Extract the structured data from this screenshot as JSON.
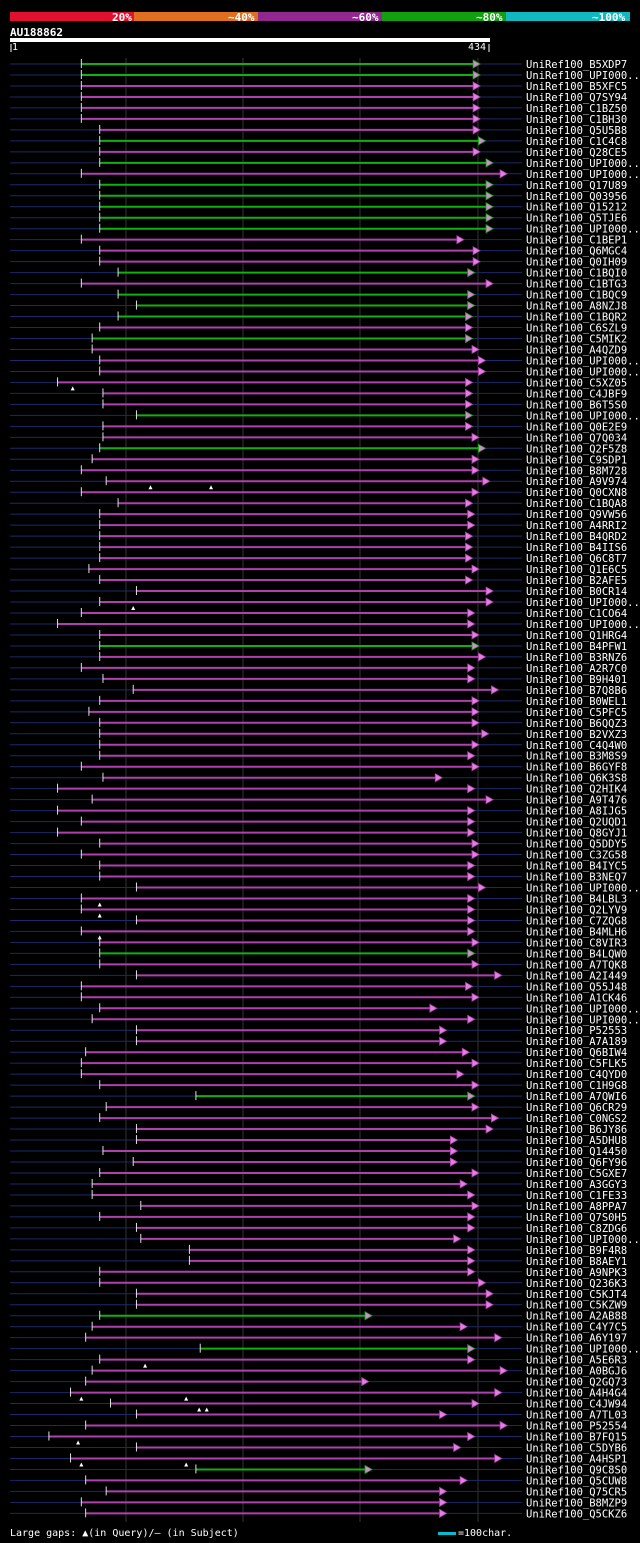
{
  "query": {
    "id": "AU188862",
    "start": "1",
    "end": "434"
  },
  "identity_scale": {
    "labels": [
      "20%",
      "~40%",
      "~60%",
      "~80%",
      "~100%"
    ],
    "colors": [
      "#e01030",
      "#e07020",
      "#902890",
      "#10a010",
      "#10b8c0"
    ]
  },
  "footer": {
    "gaps_text": "Large gaps: ▲(in Query)/— (in Subject)",
    "scale_text": "=100char."
  },
  "hits": [
    {
      "label": "UniRef100_B5XDP7",
      "start": 67,
      "end": 435,
      "color": "green",
      "qgap": []
    },
    {
      "label": "UniRef100_UPI000..",
      "start": 67,
      "end": 435,
      "color": "green",
      "qgap": []
    },
    {
      "label": "UniRef100_B5XFC5",
      "start": 67,
      "end": 435,
      "color": "purple",
      "qgap": []
    },
    {
      "label": "UniRef100_Q7SY94",
      "start": 67,
      "end": 435,
      "color": "purple",
      "qgap": []
    },
    {
      "label": "UniRef100_C1BZ50",
      "start": 67,
      "end": 435,
      "color": "purple",
      "qgap": []
    },
    {
      "label": "UniRef100_C1BH30",
      "start": 67,
      "end": 435,
      "color": "purple",
      "qgap": []
    },
    {
      "label": "UniRef100_Q5U5B8",
      "start": 84,
      "end": 435,
      "color": "purple",
      "qgap": []
    },
    {
      "label": "UniRef100_C1C4C8",
      "start": 84,
      "end": 440,
      "color": "green",
      "qgap": []
    },
    {
      "label": "UniRef100_Q28CE5",
      "start": 84,
      "end": 435,
      "color": "purple",
      "qgap": []
    },
    {
      "label": "UniRef100_UPI000..",
      "start": 84,
      "end": 447,
      "color": "green",
      "qgap": []
    },
    {
      "label": "UniRef100_UPI000..",
      "start": 67,
      "end": 460,
      "color": "purple",
      "qgap": []
    },
    {
      "label": "UniRef100_Q17U89",
      "start": 84,
      "end": 447,
      "color": "green",
      "qgap": []
    },
    {
      "label": "UniRef100_Q03956",
      "start": 84,
      "end": 447,
      "color": "green",
      "qgap": []
    },
    {
      "label": "UniRef100_Q15212",
      "start": 84,
      "end": 447,
      "color": "green",
      "qgap": []
    },
    {
      "label": "UniRef100_Q5TJE6",
      "start": 84,
      "end": 447,
      "color": "green",
      "qgap": []
    },
    {
      "label": "UniRef100_UPI000..",
      "start": 84,
      "end": 447,
      "color": "green",
      "qgap": []
    },
    {
      "label": "UniRef100_C1BEP1",
      "start": 67,
      "end": 420,
      "color": "purple",
      "qgap": []
    },
    {
      "label": "UniRef100_Q6MGC4",
      "start": 84,
      "end": 435,
      "color": "purple",
      "qgap": []
    },
    {
      "label": "UniRef100_Q0IH09",
      "start": 84,
      "end": 435,
      "color": "purple",
      "qgap": []
    },
    {
      "label": "UniRef100_C1BQI0",
      "start": 101,
      "end": 430,
      "color": "green",
      "qgap": []
    },
    {
      "label": "UniRef100_C1BTG3",
      "start": 67,
      "end": 447,
      "color": "purple",
      "qgap": []
    },
    {
      "label": "UniRef100_C1BQC9",
      "start": 101,
      "end": 430,
      "color": "green",
      "qgap": []
    },
    {
      "label": "UniRef100_A8NZJ8",
      "start": 118,
      "end": 430,
      "color": "green",
      "qgap": []
    },
    {
      "label": "UniRef100_C1BQR2",
      "start": 101,
      "end": 428,
      "color": "green",
      "qgap": []
    },
    {
      "label": "UniRef100_C6SZL9",
      "start": 84,
      "end": 428,
      "color": "purple",
      "qgap": []
    },
    {
      "label": "UniRef100_C5MIK2",
      "start": 77,
      "end": 428,
      "color": "green",
      "qgap": []
    },
    {
      "label": "UniRef100_A4QZD9",
      "start": 77,
      "end": 434,
      "color": "purple",
      "qgap": []
    },
    {
      "label": "UniRef100_UPI000..",
      "start": 84,
      "end": 440,
      "color": "purple",
      "qgap": []
    },
    {
      "label": "UniRef100_UPI000..",
      "start": 84,
      "end": 440,
      "color": "purple",
      "qgap": []
    },
    {
      "label": "UniRef100_C5XZ05",
      "start": 45,
      "end": 428,
      "color": "purple",
      "qgap": [
        59
      ]
    },
    {
      "label": "UniRef100_C4JBF9",
      "start": 87,
      "end": 428,
      "color": "purple",
      "qgap": []
    },
    {
      "label": "UniRef100_B6T5S0",
      "start": 87,
      "end": 428,
      "color": "purple",
      "qgap": []
    },
    {
      "label": "UniRef100_UPI000..",
      "start": 118,
      "end": 428,
      "color": "green",
      "qgap": []
    },
    {
      "label": "UniRef100_Q0E2E9",
      "start": 87,
      "end": 428,
      "color": "purple",
      "qgap": []
    },
    {
      "label": "UniRef100_Q7Q034",
      "start": 87,
      "end": 434,
      "color": "purple",
      "qgap": []
    },
    {
      "label": "UniRef100_Q2F5Z8",
      "start": 84,
      "end": 440,
      "color": "green",
      "qgap": []
    },
    {
      "label": "UniRef100_C9SDP1",
      "start": 77,
      "end": 434,
      "color": "purple",
      "qgap": []
    },
    {
      "label": "UniRef100_B8M728",
      "start": 67,
      "end": 434,
      "color": "purple",
      "qgap": []
    },
    {
      "label": "UniRef100_A9V974",
      "start": 90,
      "end": 444,
      "color": "purple",
      "qgap": [
        131,
        187
      ]
    },
    {
      "label": "UniRef100_Q0CXN8",
      "start": 67,
      "end": 434,
      "color": "purple",
      "qgap": []
    },
    {
      "label": "UniRef100_C1BQA8",
      "start": 101,
      "end": 428,
      "color": "purple",
      "qgap": []
    },
    {
      "label": "UniRef100_Q9VW56",
      "start": 84,
      "end": 430,
      "color": "purple",
      "qgap": []
    },
    {
      "label": "UniRef100_A4RRI2",
      "start": 84,
      "end": 430,
      "color": "purple",
      "qgap": []
    },
    {
      "label": "UniRef100_B4QRD2",
      "start": 84,
      "end": 428,
      "color": "purple",
      "qgap": []
    },
    {
      "label": "UniRef100_B4IIS6",
      "start": 84,
      "end": 428,
      "color": "purple",
      "qgap": []
    },
    {
      "label": "UniRef100_Q6C8T7",
      "start": 84,
      "end": 428,
      "color": "purple",
      "qgap": []
    },
    {
      "label": "UniRef100_Q1E6C5",
      "start": 74,
      "end": 434,
      "color": "purple",
      "qgap": []
    },
    {
      "label": "UniRef100_B2AFE5",
      "start": 84,
      "end": 428,
      "color": "purple",
      "qgap": []
    },
    {
      "label": "UniRef100_B0CR14",
      "start": 118,
      "end": 447,
      "color": "purple",
      "qgap": []
    },
    {
      "label": "UniRef100_UPI000..",
      "start": 84,
      "end": 447,
      "color": "purple",
      "qgap": [
        115
      ]
    },
    {
      "label": "UniRef100_C1CO64",
      "start": 67,
      "end": 430,
      "color": "purple",
      "qgap": []
    },
    {
      "label": "UniRef100_UPI000..",
      "start": 45,
      "end": 430,
      "color": "purple",
      "qgap": []
    },
    {
      "label": "UniRef100_Q1HRG4",
      "start": 84,
      "end": 434,
      "color": "purple",
      "qgap": []
    },
    {
      "label": "UniRef100_B4PFW1",
      "start": 84,
      "end": 434,
      "color": "green",
      "qgap": []
    },
    {
      "label": "UniRef100_B3RNZ6",
      "start": 84,
      "end": 440,
      "color": "purple",
      "qgap": []
    },
    {
      "label": "UniRef100_A2R7C0",
      "start": 67,
      "end": 430,
      "color": "purple",
      "qgap": []
    },
    {
      "label": "UniRef100_B9H401",
      "start": 87,
      "end": 430,
      "color": "purple",
      "qgap": []
    },
    {
      "label": "UniRef100_B7Q8B6",
      "start": 115,
      "end": 452,
      "color": "purple",
      "qgap": []
    },
    {
      "label": "UniRef100_B0WEL1",
      "start": 84,
      "end": 434,
      "color": "purple",
      "qgap": []
    },
    {
      "label": "UniRef100_C5PFC5",
      "start": 74,
      "end": 434,
      "color": "purple",
      "qgap": []
    },
    {
      "label": "UniRef100_B6QQZ3",
      "start": 84,
      "end": 434,
      "color": "purple",
      "qgap": []
    },
    {
      "label": "UniRef100_B2VXZ3",
      "start": 84,
      "end": 443,
      "color": "purple",
      "qgap": []
    },
    {
      "label": "UniRef100_C4Q4W0",
      "start": 84,
      "end": 434,
      "color": "purple",
      "qgap": []
    },
    {
      "label": "UniRef100_B3M8S9",
      "start": 84,
      "end": 430,
      "color": "purple",
      "qgap": []
    },
    {
      "label": "UniRef100_B6GYF8",
      "start": 67,
      "end": 434,
      "color": "purple",
      "qgap": []
    },
    {
      "label": "UniRef100_Q6K3S8",
      "start": 87,
      "end": 400,
      "color": "purple",
      "qgap": []
    },
    {
      "label": "UniRef100_Q2HIK4",
      "start": 45,
      "end": 430,
      "color": "purple",
      "qgap": []
    },
    {
      "label": "UniRef100_A9T476",
      "start": 77,
      "end": 447,
      "color": "purple",
      "qgap": []
    },
    {
      "label": "UniRef100_A8IJG5",
      "start": 45,
      "end": 430,
      "color": "purple",
      "qgap": []
    },
    {
      "label": "UniRef100_Q2UQD1",
      "start": 67,
      "end": 430,
      "color": "purple",
      "qgap": []
    },
    {
      "label": "UniRef100_Q8GYJ1",
      "start": 45,
      "end": 430,
      "color": "purple",
      "qgap": []
    },
    {
      "label": "UniRef100_Q5DDY5",
      "start": 84,
      "end": 434,
      "color": "purple",
      "qgap": []
    },
    {
      "label": "UniRef100_C3ZG58",
      "start": 67,
      "end": 434,
      "color": "purple",
      "qgap": []
    },
    {
      "label": "UniRef100_B4IYC5",
      "start": 84,
      "end": 430,
      "color": "purple",
      "qgap": []
    },
    {
      "label": "UniRef100_B3NEQ7",
      "start": 84,
      "end": 430,
      "color": "purple",
      "qgap": []
    },
    {
      "label": "UniRef100_UPI000..",
      "start": 118,
      "end": 440,
      "color": "purple",
      "qgap": []
    },
    {
      "label": "UniRef100_B4LBL3",
      "start": 67,
      "end": 430,
      "color": "purple",
      "qgap": [
        84
      ]
    },
    {
      "label": "UniRef100_Q2LYV9",
      "start": 67,
      "end": 430,
      "color": "purple",
      "qgap": [
        84
      ]
    },
    {
      "label": "UniRef100_C7ZQG8",
      "start": 118,
      "end": 430,
      "color": "purple",
      "qgap": []
    },
    {
      "label": "UniRef100_B4MLH6",
      "start": 67,
      "end": 430,
      "color": "purple",
      "qgap": [
        84
      ]
    },
    {
      "label": "UniRef100_C8VIR3",
      "start": 84,
      "end": 434,
      "color": "purple",
      "qgap": []
    },
    {
      "label": "UniRef100_B4LQW0",
      "start": 84,
      "end": 430,
      "color": "green",
      "qgap": []
    },
    {
      "label": "UniRef100_A7TQK8",
      "start": 84,
      "end": 434,
      "color": "purple",
      "qgap": []
    },
    {
      "label": "UniRef100_A2I449",
      "start": 118,
      "end": 455,
      "color": "purple",
      "qgap": []
    },
    {
      "label": "UniRef100_Q55J48",
      "start": 67,
      "end": 428,
      "color": "purple",
      "qgap": []
    },
    {
      "label": "UniRef100_A1CK46",
      "start": 67,
      "end": 434,
      "color": "purple",
      "qgap": []
    },
    {
      "label": "UniRef100_UPI000..",
      "start": 84,
      "end": 395,
      "color": "purple",
      "qgap": []
    },
    {
      "label": "UniRef100_UPI000..",
      "start": 77,
      "end": 430,
      "color": "purple",
      "qgap": []
    },
    {
      "label": "UniRef100_P52553",
      "start": 118,
      "end": 404,
      "color": "purple",
      "qgap": []
    },
    {
      "label": "UniRef100_A7A189",
      "start": 118,
      "end": 404,
      "color": "purple",
      "qgap": []
    },
    {
      "label": "UniRef100_Q6BIW4",
      "start": 71,
      "end": 425,
      "color": "purple",
      "qgap": []
    },
    {
      "label": "UniRef100_C5FLK5",
      "start": 67,
      "end": 434,
      "color": "purple",
      "qgap": []
    },
    {
      "label": "UniRef100_C4QYD0",
      "start": 67,
      "end": 420,
      "color": "purple",
      "qgap": []
    },
    {
      "label": "UniRef100_C1H9G8",
      "start": 84,
      "end": 434,
      "color": "purple",
      "qgap": []
    },
    {
      "label": "UniRef100_A7QWI6",
      "start": 173,
      "end": 430,
      "color": "green",
      "qgap": []
    },
    {
      "label": "UniRef100_Q6CR29",
      "start": 90,
      "end": 434,
      "color": "purple",
      "qgap": []
    },
    {
      "label": "UniRef100_C0NGS2",
      "start": 84,
      "end": 452,
      "color": "purple",
      "qgap": []
    },
    {
      "label": "UniRef100_B6JY86",
      "start": 118,
      "end": 447,
      "color": "purple",
      "qgap": []
    },
    {
      "label": "UniRef100_A5DHU8",
      "start": 118,
      "end": 414,
      "color": "purple",
      "qgap": []
    },
    {
      "label": "UniRef100_Q14450",
      "start": 87,
      "end": 414,
      "color": "purple",
      "qgap": []
    },
    {
      "label": "UniRef100_Q6FY96",
      "start": 115,
      "end": 414,
      "color": "purple",
      "qgap": []
    },
    {
      "label": "UniRef100_C5GXE7",
      "start": 84,
      "end": 434,
      "color": "purple",
      "qgap": []
    },
    {
      "label": "UniRef100_A3GGY3",
      "start": 77,
      "end": 423,
      "color": "purple",
      "qgap": []
    },
    {
      "label": "UniRef100_C1FE33",
      "start": 77,
      "end": 430,
      "color": "purple",
      "qgap": []
    },
    {
      "label": "UniRef100_A8PPA7",
      "start": 122,
      "end": 434,
      "color": "purple",
      "qgap": []
    },
    {
      "label": "UniRef100_Q7S0H5",
      "start": 84,
      "end": 430,
      "color": "purple",
      "qgap": []
    },
    {
      "label": "UniRef100_C8ZDG6",
      "start": 118,
      "end": 430,
      "color": "purple",
      "qgap": []
    },
    {
      "label": "UniRef100_UPI000..",
      "start": 122,
      "end": 417,
      "color": "purple",
      "qgap": []
    },
    {
      "label": "UniRef100_B9F4R8",
      "start": 167,
      "end": 430,
      "color": "purple",
      "qgap": []
    },
    {
      "label": "UniRef100_B8AEY1",
      "start": 167,
      "end": 430,
      "color": "purple",
      "qgap": []
    },
    {
      "label": "UniRef100_A9NPK3",
      "start": 84,
      "end": 430,
      "color": "purple",
      "qgap": []
    },
    {
      "label": "UniRef100_Q236K3",
      "start": 84,
      "end": 440,
      "color": "purple",
      "qgap": []
    },
    {
      "label": "UniRef100_C5KJT4",
      "start": 118,
      "end": 447,
      "color": "purple",
      "qgap": []
    },
    {
      "label": "UniRef100_C5KZW9",
      "start": 118,
      "end": 447,
      "color": "purple",
      "qgap": []
    },
    {
      "label": "UniRef100_A2AB88",
      "start": 84,
      "end": 335,
      "color": "green",
      "qgap": []
    },
    {
      "label": "UniRef100_C4Y7C5",
      "start": 77,
      "end": 423,
      "color": "purple",
      "qgap": []
    },
    {
      "label": "UniRef100_A6Y197",
      "start": 71,
      "end": 455,
      "color": "purple",
      "qgap": []
    },
    {
      "label": "UniRef100_UPI000..",
      "start": 177,
      "end": 430,
      "color": "green",
      "qgap": []
    },
    {
      "label": "UniRef100_A5E6R3",
      "start": 84,
      "end": 430,
      "color": "purple",
      "qgap": [
        126
      ]
    },
    {
      "label": "UniRef100_A0BGJ6",
      "start": 77,
      "end": 460,
      "color": "purple",
      "qgap": []
    },
    {
      "label": "UniRef100_Q2GQ73",
      "start": 71,
      "end": 332,
      "color": "purple",
      "qgap": []
    },
    {
      "label": "UniRef100_A4H4G4",
      "start": 57,
      "end": 455,
      "color": "purple",
      "qgap": [
        67,
        164
      ]
    },
    {
      "label": "UniRef100_C4JW94",
      "start": 94,
      "end": 434,
      "color": "purple",
      "qgap": [
        176,
        183
      ]
    },
    {
      "label": "UniRef100_A7TL03",
      "start": 118,
      "end": 404,
      "color": "purple",
      "qgap": []
    },
    {
      "label": "UniRef100_P52554",
      "start": 71,
      "end": 460,
      "color": "purple",
      "qgap": []
    },
    {
      "label": "UniRef100_B7FQ15",
      "start": 37,
      "end": 430,
      "color": "purple",
      "qgap": [
        64
      ]
    },
    {
      "label": "UniRef100_C5DYB6",
      "start": 118,
      "end": 417,
      "color": "purple",
      "qgap": []
    },
    {
      "label": "UniRef100_A4HSP1",
      "start": 57,
      "end": 455,
      "color": "purple",
      "qgap": [
        67,
        164
      ]
    },
    {
      "label": "UniRef100_Q9C8S0",
      "start": 173,
      "end": 335,
      "color": "green",
      "qgap": []
    },
    {
      "label": "UniRef100_Q5CUW8",
      "start": 71,
      "end": 423,
      "color": "purple",
      "qgap": []
    },
    {
      "label": "UniRef100_Q75CR5",
      "start": 90,
      "end": 404,
      "color": "purple",
      "qgap": []
    },
    {
      "label": "UniRef100_B8MZP9",
      "start": 67,
      "end": 404,
      "color": "purple",
      "qgap": []
    },
    {
      "label": "UniRef100_Q5CKZ6",
      "start": 71,
      "end": 404,
      "color": "purple",
      "qgap": []
    }
  ]
}
